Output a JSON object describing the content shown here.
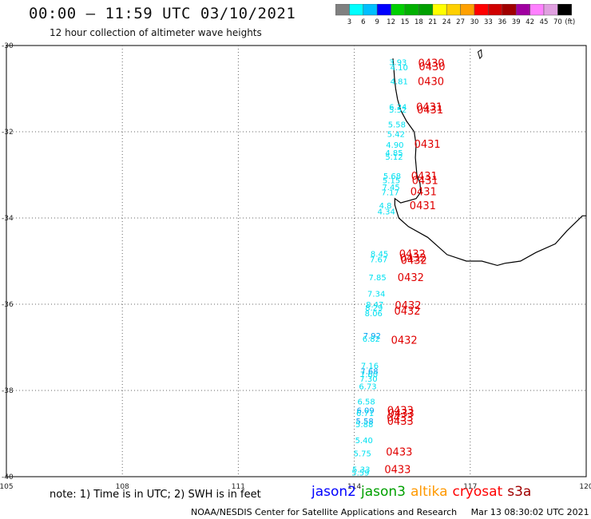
{
  "header": {
    "title": "00:00 – 11:59 UTC 03/10/2021",
    "subtitle": "12 hour collection of altimeter wave heights"
  },
  "colorbar": {
    "colors": [
      "#808080",
      "#00ffff",
      "#00bfff",
      "#0000ff",
      "#00d000",
      "#00b000",
      "#00a000",
      "#ffff00",
      "#ffd000",
      "#ffa000",
      "#ff0000",
      "#d00000",
      "#a00000",
      "#a000a0",
      "#ff80ff",
      "#e0a0e0",
      "#000000"
    ],
    "labels": [
      "3",
      "6",
      "9",
      "12",
      "15",
      "18",
      "21",
      "24",
      "27",
      "30",
      "33",
      "36",
      "39",
      "42",
      "45",
      "70",
      "(ft)"
    ]
  },
  "map": {
    "lon_range": [
      105,
      120
    ],
    "lat_range": [
      -40,
      -30
    ],
    "lon_ticks": [
      "105",
      "108",
      "111",
      "114",
      "117",
      "120"
    ],
    "lat_ticks": [
      "-30",
      "-32",
      "-34",
      "-36",
      "-38",
      "-40"
    ],
    "coastline": [
      [
        115.0,
        -30.3
      ],
      [
        115.02,
        -30.5
      ],
      [
        115.04,
        -30.75
      ],
      [
        115.07,
        -31.0
      ],
      [
        115.12,
        -31.25
      ],
      [
        115.2,
        -31.5
      ],
      [
        115.35,
        -31.75
      ],
      [
        115.55,
        -32.0
      ],
      [
        115.6,
        -32.3
      ],
      [
        115.58,
        -32.6
      ],
      [
        115.62,
        -33.0
      ],
      [
        115.7,
        -33.2
      ],
      [
        115.72,
        -33.4
      ],
      [
        115.6,
        -33.55
      ],
      [
        115.2,
        -33.65
      ],
      [
        115.05,
        -33.55
      ],
      [
        115.05,
        -33.7
      ],
      [
        115.15,
        -34.0
      ],
      [
        115.4,
        -34.2
      ],
      [
        115.9,
        -34.45
      ],
      [
        116.4,
        -34.85
      ],
      [
        116.9,
        -35.0
      ],
      [
        117.3,
        -35.0
      ],
      [
        117.7,
        -35.1
      ],
      [
        117.9,
        -35.05
      ],
      [
        118.3,
        -35.0
      ],
      [
        118.7,
        -34.8
      ],
      [
        119.2,
        -34.6
      ],
      [
        119.5,
        -34.3
      ],
      [
        119.9,
        -33.95
      ],
      [
        120.0,
        -33.95
      ]
    ],
    "island": [
      [
        117.2,
        -30.15
      ],
      [
        117.25,
        -30.3
      ],
      [
        117.3,
        -30.25
      ],
      [
        117.28,
        -30.1
      ]
    ],
    "swh": [
      {
        "lon": 114.9,
        "lat": -30.38,
        "text": "3.93",
        "color": "#00e0f0"
      },
      {
        "lon": 114.93,
        "lat": -30.5,
        "text": "4.10",
        "color": "#00e0f0"
      },
      {
        "lon": 114.93,
        "lat": -30.82,
        "text": "4.81",
        "color": "#00e0f0"
      },
      {
        "lon": 114.9,
        "lat": -31.42,
        "text": "6.24",
        "color": "#00e0f0"
      },
      {
        "lon": 114.9,
        "lat": -31.48,
        "text": "5.52",
        "color": "#00e0f0"
      },
      {
        "lon": 114.87,
        "lat": -31.82,
        "text": "5.58",
        "color": "#00e0f0"
      },
      {
        "lon": 114.85,
        "lat": -32.05,
        "text": "5.42",
        "color": "#00e0f0"
      },
      {
        "lon": 114.82,
        "lat": -32.3,
        "text": "4.90",
        "color": "#00e0f0"
      },
      {
        "lon": 114.8,
        "lat": -32.48,
        "text": "4.85",
        "color": "#00e0f0"
      },
      {
        "lon": 114.8,
        "lat": -32.57,
        "text": "5.12",
        "color": "#00e0f0"
      },
      {
        "lon": 114.75,
        "lat": -33.02,
        "text": "5.68",
        "color": "#00e0f0"
      },
      {
        "lon": 114.73,
        "lat": -33.12,
        "text": "5.15",
        "color": "#00e0f0"
      },
      {
        "lon": 114.72,
        "lat": -33.28,
        "text": "7.45",
        "color": "#00e0f0"
      },
      {
        "lon": 114.7,
        "lat": -33.4,
        "text": "7.17",
        "color": "#00e0f0"
      },
      {
        "lon": 114.64,
        "lat": -33.7,
        "text": "4.8",
        "color": "#00e0f0"
      },
      {
        "lon": 114.6,
        "lat": -33.84,
        "text": "4.34",
        "color": "#00e0f0"
      },
      {
        "lon": 114.42,
        "lat": -34.82,
        "text": "8.45",
        "color": "#00e0f0"
      },
      {
        "lon": 114.4,
        "lat": -34.95,
        "text": "7.67",
        "color": "#00e0f0"
      },
      {
        "lon": 114.37,
        "lat": -35.37,
        "text": "7.85",
        "color": "#00e0f0"
      },
      {
        "lon": 114.34,
        "lat": -35.75,
        "text": "7.34",
        "color": "#00e0f0"
      },
      {
        "lon": 114.3,
        "lat": -36.0,
        "text": "8.47",
        "color": "#00e0f0"
      },
      {
        "lon": 114.28,
        "lat": -36.07,
        "text": "8.29",
        "color": "#00e0f0"
      },
      {
        "lon": 114.27,
        "lat": -36.2,
        "text": "8.06",
        "color": "#00e0f0"
      },
      {
        "lon": 114.23,
        "lat": -36.72,
        "text": "7.92",
        "color": "#00a0f0"
      },
      {
        "lon": 114.21,
        "lat": -36.8,
        "text": "6.82",
        "color": "#00e0f0"
      },
      {
        "lon": 114.17,
        "lat": -37.42,
        "text": "7.16",
        "color": "#00e0f0"
      },
      {
        "lon": 114.16,
        "lat": -37.55,
        "text": "7.68",
        "color": "#00a0f0"
      },
      {
        "lon": 114.15,
        "lat": -37.62,
        "text": "7.60",
        "color": "#00e0f0"
      },
      {
        "lon": 114.14,
        "lat": -37.72,
        "text": "7.30",
        "color": "#00e0f0"
      },
      {
        "lon": 114.12,
        "lat": -37.9,
        "text": "6.73",
        "color": "#00e0f0"
      },
      {
        "lon": 114.08,
        "lat": -38.25,
        "text": "6.58",
        "color": "#00e0f0"
      },
      {
        "lon": 114.06,
        "lat": -38.45,
        "text": "6.09",
        "color": "#00a0f0"
      },
      {
        "lon": 114.05,
        "lat": -38.52,
        "text": "6.71",
        "color": "#00e0f0"
      },
      {
        "lon": 114.04,
        "lat": -38.7,
        "text": "5.58",
        "color": "#00a0f0"
      },
      {
        "lon": 114.03,
        "lat": -38.78,
        "text": "5.88",
        "color": "#00e0f0"
      },
      {
        "lon": 114.02,
        "lat": -39.15,
        "text": "5.40",
        "color": "#00e0f0"
      },
      {
        "lon": 113.98,
        "lat": -39.45,
        "text": "5.75",
        "color": "#00e0f0"
      },
      {
        "lon": 113.95,
        "lat": -39.82,
        "text": "5.33",
        "color": "#00e0f0"
      },
      {
        "lon": 113.93,
        "lat": -39.9,
        "text": "5.59",
        "color": "#00e0f0"
      }
    ],
    "time_labels": [
      {
        "lon": 115.65,
        "lat": -30.4,
        "text": "0430"
      },
      {
        "lon": 115.67,
        "lat": -30.48,
        "text": "0430"
      },
      {
        "lon": 115.64,
        "lat": -30.82,
        "text": "0430"
      },
      {
        "lon": 115.6,
        "lat": -31.42,
        "text": "0431"
      },
      {
        "lon": 115.62,
        "lat": -31.48,
        "text": "0431"
      },
      {
        "lon": 115.55,
        "lat": -32.28,
        "text": "0431"
      },
      {
        "lon": 115.47,
        "lat": -33.02,
        "text": "0431"
      },
      {
        "lon": 115.49,
        "lat": -33.12,
        "text": "0431"
      },
      {
        "lon": 115.45,
        "lat": -33.38,
        "text": "0431"
      },
      {
        "lon": 115.43,
        "lat": -33.7,
        "text": "0431"
      },
      {
        "lon": 115.16,
        "lat": -34.82,
        "text": "0432"
      },
      {
        "lon": 115.18,
        "lat": -34.92,
        "text": "0432"
      },
      {
        "lon": 115.2,
        "lat": -34.97,
        "text": "0432"
      },
      {
        "lon": 115.12,
        "lat": -35.37,
        "text": "0432"
      },
      {
        "lon": 115.05,
        "lat": -36.02,
        "text": "0432"
      },
      {
        "lon": 115.03,
        "lat": -36.15,
        "text": "0432"
      },
      {
        "lon": 114.95,
        "lat": -36.82,
        "text": "0432"
      },
      {
        "lon": 114.85,
        "lat": -38.45,
        "text": "0433"
      },
      {
        "lon": 114.87,
        "lat": -38.52,
        "text": "0433"
      },
      {
        "lon": 114.84,
        "lat": -38.62,
        "text": "0433"
      },
      {
        "lon": 114.85,
        "lat": -38.7,
        "text": "0433"
      },
      {
        "lon": 114.82,
        "lat": -39.42,
        "text": "0433"
      },
      {
        "lon": 114.78,
        "lat": -39.82,
        "text": "0433"
      }
    ]
  },
  "footer": {
    "note": "note:  1) Time is in UTC;  2) SWH is in feet",
    "satellites": [
      {
        "name": "jason2",
        "color": "#0000ff"
      },
      {
        "name": "jason3",
        "color": "#00a000"
      },
      {
        "name": "altika",
        "color": "#ff9900"
      },
      {
        "name": "cryosat",
        "color": "#ff0000"
      },
      {
        "name": "s3a",
        "color": "#a00000"
      }
    ],
    "credit_org": "NOAA/NESDIS Center for Satellite Applications and Research",
    "credit_time": "Mar 13 08:30:02 UTC 2021"
  }
}
